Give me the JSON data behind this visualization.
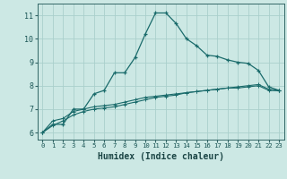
{
  "xlabel": "Humidex (Indice chaleur)",
  "ylabel": "",
  "bg_color": "#cce8e4",
  "grid_color": "#aacfcc",
  "line_color": "#1a6b6b",
  "xlim": [
    -0.5,
    23.5
  ],
  "ylim": [
    5.7,
    11.5
  ],
  "xticks": [
    0,
    1,
    2,
    3,
    4,
    5,
    6,
    7,
    8,
    9,
    10,
    11,
    12,
    13,
    14,
    15,
    16,
    17,
    18,
    19,
    20,
    21,
    22,
    23
  ],
  "yticks": [
    6,
    7,
    8,
    9,
    10,
    11
  ],
  "line1_x": [
    0,
    1,
    2,
    3,
    4,
    5,
    6,
    7,
    8,
    9,
    10,
    11,
    12,
    13,
    14,
    15,
    16,
    17,
    18,
    19,
    20,
    21,
    22,
    23
  ],
  "line1_y": [
    6.0,
    6.35,
    6.35,
    7.0,
    7.0,
    7.65,
    7.8,
    8.55,
    8.55,
    9.2,
    10.2,
    11.1,
    11.1,
    10.65,
    10.0,
    9.7,
    9.3,
    9.25,
    9.1,
    9.0,
    8.95,
    8.65,
    7.95,
    7.8
  ],
  "line2_x": [
    0,
    1,
    2,
    3,
    4,
    5,
    6,
    7,
    8,
    9,
    10,
    11,
    12,
    13,
    14,
    15,
    16,
    17,
    18,
    19,
    20,
    21,
    22,
    23
  ],
  "line2_y": [
    6.0,
    6.5,
    6.6,
    6.9,
    7.0,
    7.1,
    7.15,
    7.2,
    7.3,
    7.4,
    7.5,
    7.55,
    7.6,
    7.65,
    7.7,
    7.75,
    7.8,
    7.85,
    7.9,
    7.95,
    8.0,
    8.05,
    7.85,
    7.8
  ],
  "line3_x": [
    0,
    1,
    2,
    3,
    4,
    5,
    6,
    7,
    8,
    9,
    10,
    11,
    12,
    13,
    14,
    15,
    16,
    17,
    18,
    19,
    20,
    21,
    22,
    23
  ],
  "line3_y": [
    6.0,
    6.3,
    6.5,
    6.75,
    6.9,
    7.0,
    7.05,
    7.1,
    7.2,
    7.3,
    7.4,
    7.5,
    7.55,
    7.6,
    7.7,
    7.75,
    7.8,
    7.85,
    7.9,
    7.9,
    7.95,
    8.0,
    7.8,
    7.78
  ]
}
